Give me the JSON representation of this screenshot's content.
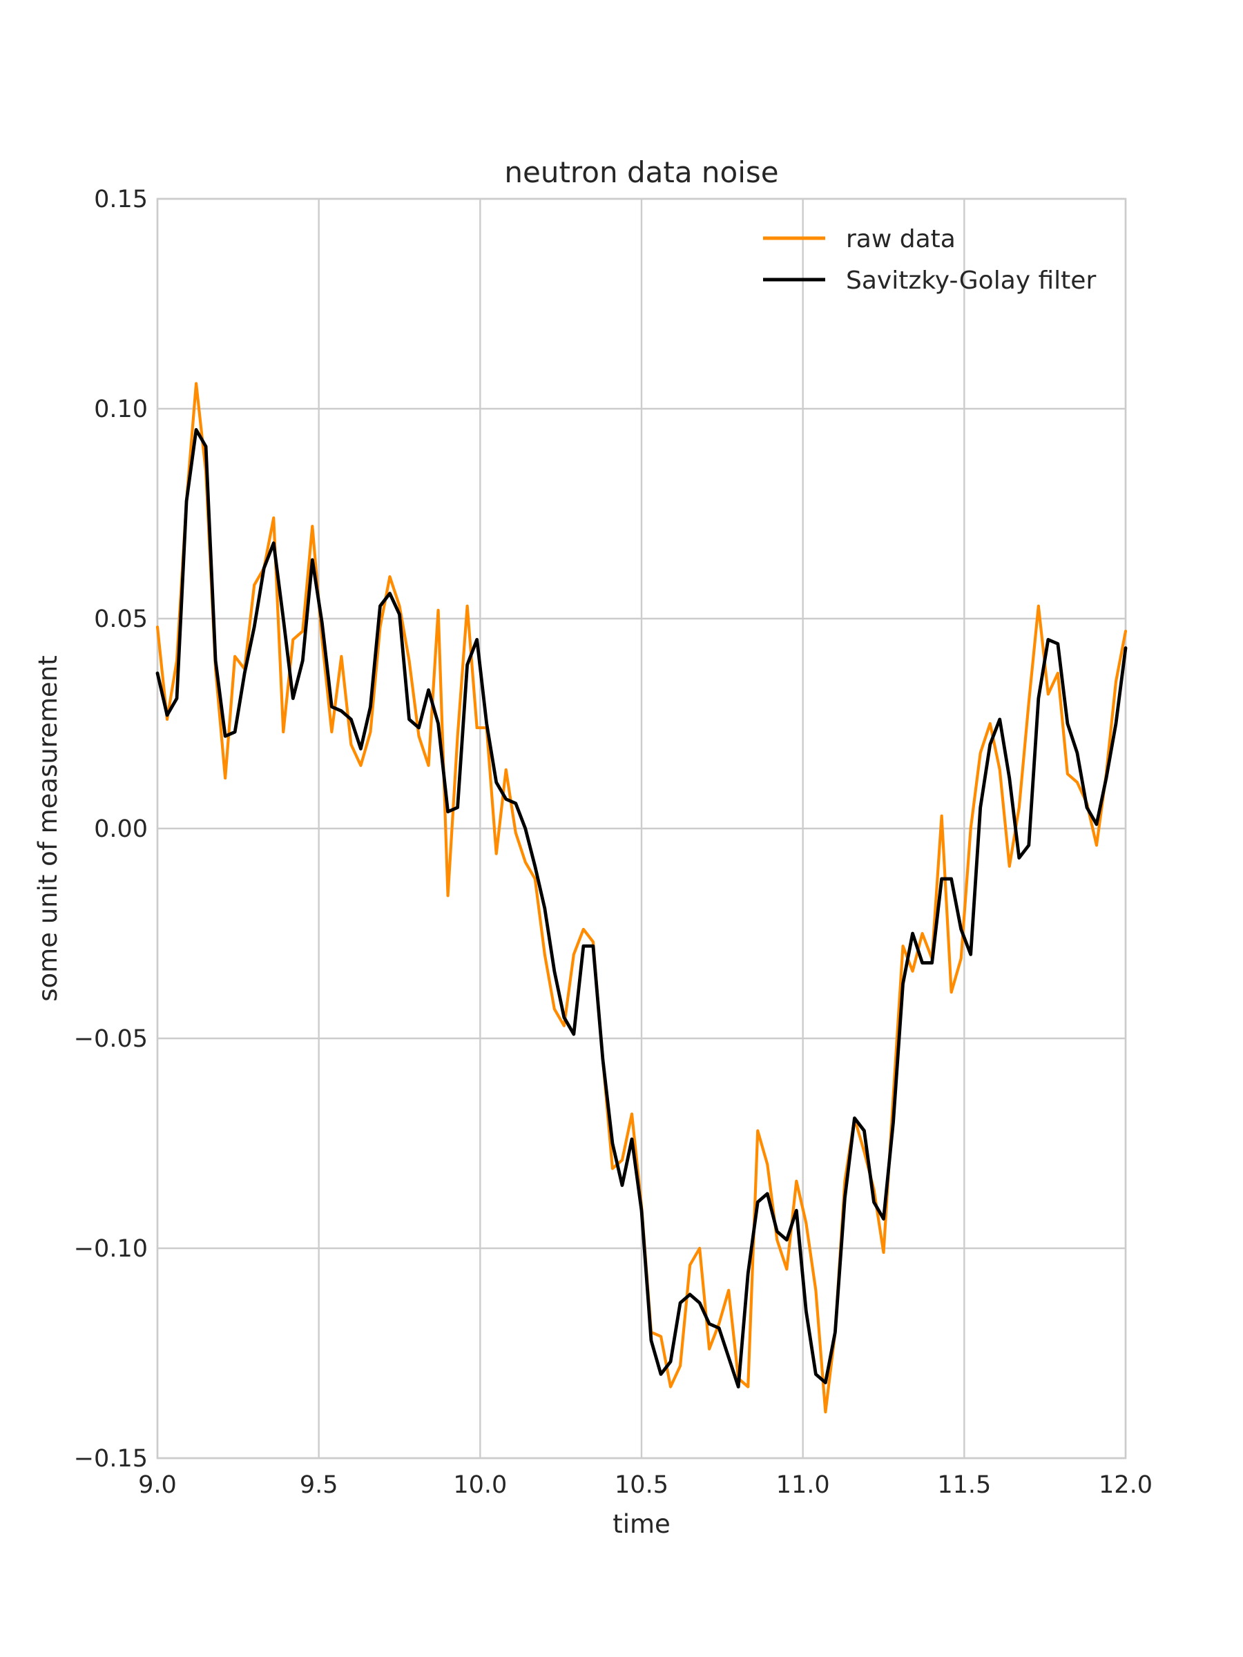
{
  "chart_data": {
    "type": "line",
    "title": "neutron data noise",
    "xlabel": "time",
    "ylabel": "some unit of measurement",
    "xlim": [
      9.0,
      12.0
    ],
    "ylim": [
      -0.15,
      0.15
    ],
    "xticks": [
      9.0,
      9.5,
      10.0,
      10.5,
      11.0,
      11.5,
      12.0
    ],
    "xtick_labels": [
      "9.0",
      "9.5",
      "10.0",
      "10.5",
      "11.0",
      "11.5",
      "12.0"
    ],
    "yticks": [
      -0.15,
      -0.1,
      -0.05,
      0.0,
      0.05,
      0.1,
      0.15
    ],
    "ytick_labels": [
      "−0.15",
      "−0.10",
      "−0.05",
      "0.00",
      "0.05",
      "0.10",
      "0.15"
    ],
    "grid": true,
    "legend_position": "top-right",
    "x": [
      9.0,
      9.03,
      9.06,
      9.09,
      9.12,
      9.15,
      9.18,
      9.21,
      9.24,
      9.27,
      9.3,
      9.33,
      9.36,
      9.39,
      9.42,
      9.45,
      9.48,
      9.51,
      9.54,
      9.57,
      9.6,
      9.63,
      9.66,
      9.69,
      9.72,
      9.75,
      9.78,
      9.81,
      9.84,
      9.87,
      9.9,
      9.93,
      9.96,
      9.99,
      10.02,
      10.05,
      10.08,
      10.11,
      10.14,
      10.17,
      10.2,
      10.23,
      10.26,
      10.29,
      10.32,
      10.35,
      10.38,
      10.41,
      10.44,
      10.47,
      10.5,
      10.53,
      10.56,
      10.59,
      10.62,
      10.65,
      10.68,
      10.71,
      10.74,
      10.77,
      10.8,
      10.83,
      10.86,
      10.89,
      10.92,
      10.95,
      10.98,
      11.01,
      11.04,
      11.07,
      11.1,
      11.13,
      11.16,
      11.19,
      11.22,
      11.25,
      11.28,
      11.31,
      11.34,
      11.37,
      11.4,
      11.43,
      11.46,
      11.49,
      11.52,
      11.55,
      11.58,
      11.61,
      11.64,
      11.67,
      11.7,
      11.73,
      11.76,
      11.79,
      11.82,
      11.85,
      11.88,
      11.91,
      11.94,
      11.97,
      12.0
    ],
    "series": [
      {
        "name": "raw data",
        "color": "#ff8c00",
        "values": [
          0.048,
          0.026,
          0.04,
          0.078,
          0.106,
          0.085,
          0.038,
          0.012,
          0.041,
          0.038,
          0.058,
          0.062,
          0.074,
          0.023,
          0.045,
          0.047,
          0.072,
          0.045,
          0.023,
          0.041,
          0.02,
          0.015,
          0.023,
          0.048,
          0.06,
          0.053,
          0.04,
          0.022,
          0.015,
          0.052,
          -0.016,
          0.022,
          0.053,
          0.024,
          0.024,
          -0.006,
          0.014,
          -0.001,
          -0.008,
          -0.012,
          -0.03,
          -0.043,
          -0.047,
          -0.03,
          -0.024,
          -0.027,
          -0.055,
          -0.081,
          -0.079,
          -0.068,
          -0.09,
          -0.12,
          -0.121,
          -0.133,
          -0.128,
          -0.104,
          -0.1,
          -0.124,
          -0.118,
          -0.11,
          -0.131,
          -0.133,
          -0.072,
          -0.08,
          -0.098,
          -0.105,
          -0.084,
          -0.094,
          -0.11,
          -0.139,
          -0.12,
          -0.084,
          -0.069,
          -0.077,
          -0.086,
          -0.101,
          -0.064,
          -0.028,
          -0.034,
          -0.025,
          -0.031,
          0.003,
          -0.039,
          -0.031,
          0.0,
          0.018,
          0.025,
          0.014,
          -0.009,
          0.005,
          0.03,
          0.053,
          0.032,
          0.037,
          0.013,
          0.011,
          0.006,
          -0.004,
          0.013,
          0.035,
          0.047
        ]
      },
      {
        "name": "Savitzky-Golay filter",
        "color": "#000000",
        "values": [
          0.037,
          0.027,
          0.031,
          0.078,
          0.095,
          0.091,
          0.04,
          0.022,
          0.023,
          0.037,
          0.048,
          0.062,
          0.068,
          0.05,
          0.031,
          0.04,
          0.064,
          0.049,
          0.029,
          0.028,
          0.026,
          0.019,
          0.029,
          0.053,
          0.056,
          0.051,
          0.026,
          0.024,
          0.033,
          0.025,
          0.004,
          0.005,
          0.039,
          0.045,
          0.025,
          0.011,
          0.007,
          0.006,
          0.0,
          -0.009,
          -0.019,
          -0.034,
          -0.045,
          -0.049,
          -0.028,
          -0.028,
          -0.055,
          -0.075,
          -0.085,
          -0.074,
          -0.091,
          -0.122,
          -0.13,
          -0.127,
          -0.113,
          -0.111,
          -0.113,
          -0.118,
          -0.119,
          -0.126,
          -0.133,
          -0.106,
          -0.089,
          -0.087,
          -0.096,
          -0.098,
          -0.091,
          -0.115,
          -0.13,
          -0.132,
          -0.12,
          -0.088,
          -0.069,
          -0.072,
          -0.089,
          -0.093,
          -0.07,
          -0.037,
          -0.025,
          -0.032,
          -0.032,
          -0.012,
          -0.012,
          -0.024,
          -0.03,
          0.005,
          0.02,
          0.026,
          0.012,
          -0.007,
          -0.004,
          0.031,
          0.045,
          0.044,
          0.025,
          0.018,
          0.005,
          0.001,
          0.012,
          0.025,
          0.043
        ]
      }
    ]
  }
}
